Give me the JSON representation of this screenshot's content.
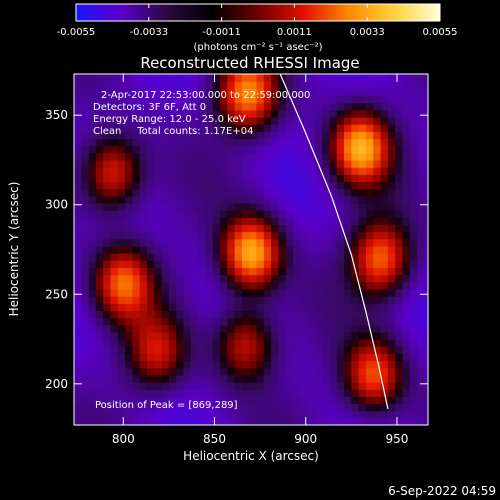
{
  "colorbar": {
    "tick_labels": [
      "-0.0055",
      "-0.0033",
      "-0.0011",
      "0.0011",
      "0.0033",
      "0.0055"
    ],
    "tick_values": [
      -0.0055,
      -0.0033,
      -0.0011,
      0.0011,
      0.0033,
      0.0055
    ],
    "range": [
      -0.0055,
      0.0055
    ],
    "units": "(photons cm⁻² s⁻¹ asec⁻²)",
    "colors": [
      "#1a14ff",
      "#5b00c8",
      "#2a0840",
      "#000000",
      "#6e0000",
      "#e01000",
      "#ff8a00",
      "#ffd23c",
      "#ffffdc"
    ]
  },
  "chart_data": {
    "type": "heatmap",
    "title": "Reconstructed RHESSI Image",
    "xlabel": "Heliocentric X (arcsec)",
    "ylabel": "Heliocentric Y (arcsec)",
    "xlim": [
      773,
      967
    ],
    "ylim": [
      177,
      373
    ],
    "x_ticks": [
      800,
      850,
      900,
      950
    ],
    "x_tick_labels": [
      "800",
      "850",
      "900",
      "950"
    ],
    "y_ticks": [
      200,
      250,
      300,
      350
    ],
    "y_tick_labels": [
      "200",
      "250",
      "300",
      "350"
    ],
    "peak": [
      869,
      289
    ],
    "sources": [
      {
        "x": 870,
        "y": 273,
        "amp": 1.0
      },
      {
        "x": 930,
        "y": 332,
        "amp": 0.95
      },
      {
        "x": 941,
        "y": 270,
        "amp": 0.8
      },
      {
        "x": 794,
        "y": 318,
        "amp": 0.7
      },
      {
        "x": 800,
        "y": 256,
        "amp": 0.75
      },
      {
        "x": 818,
        "y": 218,
        "amp": 0.55
      },
      {
        "x": 867,
        "y": 222,
        "amp": 0.6
      },
      {
        "x": 937,
        "y": 205,
        "amp": 0.75
      },
      {
        "x": 868,
        "y": 362,
        "amp": 0.85
      }
    ],
    "limb": [
      [
        886,
        373
      ],
      [
        900,
        340
      ],
      [
        914,
        305
      ],
      [
        925,
        272
      ],
      [
        933,
        240
      ],
      [
        940,
        210
      ],
      [
        945,
        186
      ]
    ]
  },
  "annotations": {
    "line1": "2-Apr-2017 22:53:00.000 to 22:59:00.000",
    "line2": "Detectors: 3F 6F, Att 0",
    "line3": "Energy Range: 12.0 - 25.0 keV",
    "line4": "Clean     Total counts: 1.17E+04",
    "peak_text": "Position of Peak = [869,289]"
  },
  "footer": {
    "timestamp": "6-Sep-2022 04:59"
  }
}
